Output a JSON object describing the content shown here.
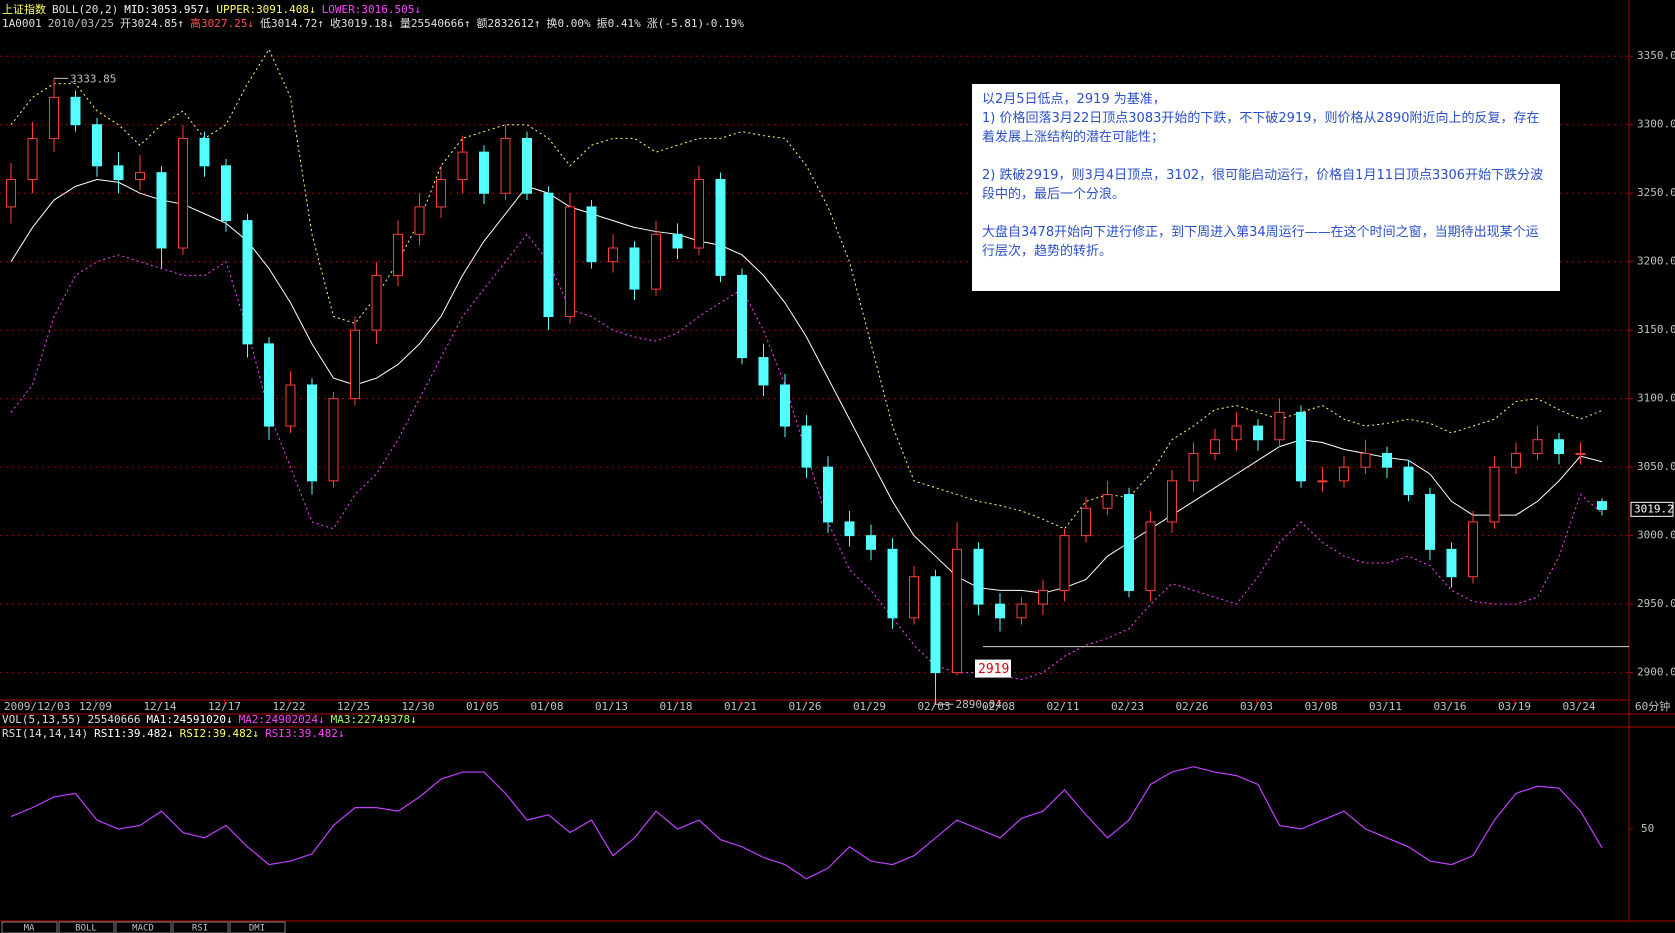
{
  "chart_data": [
    {
      "type": "candlestick",
      "header": [
        {
          "text": "上证指数",
          "color": "#ffff66"
        },
        {
          "text": "BOLL(20,2)",
          "color": "#e0e0e0"
        },
        {
          "text": "MID:3053.957↓",
          "color": "#ffffff"
        },
        {
          "text": "UPPER:3091.408↓",
          "color": "#ffff66"
        },
        {
          "text": "LOWER:3016.505↓",
          "color": "#ff44ff"
        }
      ],
      "info": [
        {
          "text": "1A0001",
          "color": "#e0e0e0"
        },
        {
          "text": "2010/03/25",
          "color": "#c0c0c0"
        },
        {
          "text": "开3024.85↑",
          "color": "#e0e0e0"
        },
        {
          "text": "高3027.25↓",
          "color": "#ff5050"
        },
        {
          "text": "低3014.72↑",
          "color": "#e0e0e0"
        },
        {
          "text": "收3019.18↓",
          "color": "#e0e0e0"
        },
        {
          "text": "量25540666↑",
          "color": "#e0e0e0"
        },
        {
          "text": "额2832612↑",
          "color": "#e0e0e0"
        },
        {
          "text": "换0.00%",
          "color": "#e0e0e0"
        },
        {
          "text": "振0.41%",
          "color": "#e0e0e0"
        },
        {
          "text": "涨(-5.81)-0.19%",
          "color": "#e0e0e0"
        }
      ],
      "categories": [
        "2009/12/03",
        null,
        null,
        "12/09",
        null,
        null,
        "12/14",
        null,
        null,
        "12/17",
        null,
        null,
        "12/22",
        null,
        null,
        "12/25",
        null,
        null,
        "12/30",
        null,
        null,
        "01/05",
        null,
        null,
        "01/08",
        null,
        null,
        "01/13",
        null,
        null,
        "01/18",
        null,
        null,
        "01/21",
        null,
        null,
        "01/26",
        null,
        null,
        "01/29",
        null,
        null,
        "02/03",
        null,
        null,
        "02/08",
        null,
        null,
        "02/11",
        null,
        null,
        "02/23",
        null,
        null,
        "02/26",
        null,
        null,
        "03/03",
        null,
        null,
        "03/08",
        null,
        null,
        "03/11",
        null,
        null,
        "03/16",
        null,
        null,
        "03/19",
        null,
        null,
        "03/24",
        null,
        null
      ],
      "open": [
        3240,
        3260,
        3290,
        3320,
        3300,
        3270,
        3260,
        3265,
        3210,
        3290,
        3270,
        3230,
        3140,
        3080,
        3110,
        3040,
        3100,
        3150,
        3190,
        3220,
        3240,
        3260,
        3280,
        3250,
        3290,
        3250,
        3160,
        3240,
        3200,
        3210,
        3180,
        3220,
        3210,
        3260,
        3190,
        3130,
        3110,
        3080,
        3050,
        3010,
        3000,
        2990,
        2940,
        2970,
        2900,
        2990,
        2950,
        2940,
        2950,
        2960,
        3000,
        3020,
        3030,
        2960,
        3010,
        3040,
        3060,
        3070,
        3080,
        3070,
        3090,
        3040,
        3040,
        3050,
        3060,
        3050,
        3030,
        2990,
        2970,
        3010,
        3050,
        3060,
        3070,
        3060,
        3024.85
      ],
      "high": [
        3272,
        3302,
        3333.85,
        3325,
        3305,
        3280,
        3278,
        3270,
        3300,
        3295,
        3275,
        3235,
        3145,
        3120,
        3115,
        3105,
        3160,
        3200,
        3230,
        3250,
        3270,
        3292,
        3285,
        3300,
        3295,
        3255,
        3250,
        3245,
        3220,
        3215,
        3230,
        3228,
        3270,
        3265,
        3195,
        3140,
        3118,
        3088,
        3058,
        3018,
        3008,
        2998,
        2978,
        2975,
        3010,
        2995,
        2958,
        2955,
        2968,
        3005,
        3028,
        3040,
        3035,
        3018,
        3048,
        3068,
        3078,
        3090,
        3085,
        3100,
        3095,
        3050,
        3058,
        3070,
        3065,
        3055,
        3035,
        2995,
        3018,
        3058,
        3068,
        3080,
        3075,
        3068,
        3027.25
      ],
      "low": [
        3228,
        3250,
        3280,
        3295,
        3262,
        3250,
        3252,
        3195,
        3205,
        3262,
        3222,
        3130,
        3070,
        3075,
        3030,
        3035,
        3095,
        3140,
        3182,
        3212,
        3232,
        3250,
        3242,
        3245,
        3245,
        3150,
        3155,
        3195,
        3192,
        3172,
        3175,
        3202,
        3205,
        3185,
        3125,
        3102,
        3072,
        3042,
        3002,
        2992,
        2982,
        2932,
        2935,
        2890.04,
        2898,
        2942,
        2930,
        2935,
        2942,
        2952,
        2995,
        3015,
        2955,
        2952,
        3002,
        3032,
        3055,
        3062,
        3062,
        3065,
        3035,
        3032,
        3035,
        3045,
        3042,
        3025,
        2982,
        2962,
        2965,
        3005,
        3045,
        3055,
        3052,
        3052,
        3014.72
      ],
      "close": [
        3260,
        3290,
        3320,
        3300,
        3270,
        3260,
        3265,
        3210,
        3290,
        3270,
        3230,
        3140,
        3080,
        3110,
        3040,
        3100,
        3150,
        3190,
        3220,
        3240,
        3260,
        3280,
        3250,
        3290,
        3250,
        3160,
        3240,
        3200,
        3210,
        3180,
        3220,
        3210,
        3260,
        3190,
        3130,
        3110,
        3080,
        3050,
        3010,
        3000,
        2990,
        2940,
        2970,
        2900,
        2990,
        2950,
        2940,
        2950,
        2960,
        3000,
        3020,
        3030,
        2960,
        3010,
        3040,
        3060,
        3070,
        3080,
        3070,
        3090,
        3040,
        3040,
        3050,
        3060,
        3050,
        3030,
        2990,
        2970,
        3010,
        3050,
        3060,
        3070,
        3060,
        3060,
        3019.18
      ],
      "up_color": "#ff3c3c",
      "down_color": "#54ffff",
      "series": [
        {
          "color": "#ffffff",
          "style": "solid",
          "values": [
            3200,
            3225,
            3245,
            3255,
            3260,
            3258,
            3250,
            3245,
            3242,
            3235,
            3228,
            3215,
            3195,
            3170,
            3140,
            3115,
            3110,
            3115,
            3125,
            3140,
            3160,
            3190,
            3215,
            3235,
            3255,
            3250,
            3240,
            3235,
            3230,
            3225,
            3222,
            3220,
            3215,
            3212,
            3205,
            3190,
            3170,
            3145,
            3115,
            3085,
            3055,
            3025,
            3000,
            2985,
            2970,
            2962,
            2960,
            2960,
            2958,
            2962,
            2968,
            2985,
            2995,
            3005,
            3015,
            3025,
            3035,
            3045,
            3055,
            3065,
            3070,
            3068,
            3063,
            3060,
            3057,
            3055,
            3045,
            3025,
            3015,
            3015,
            3015,
            3025,
            3040,
            3058,
            3053.957
          ]
        },
        {
          "color": "#ffff80",
          "style": "dotted",
          "values": [
            3300,
            3320,
            3330,
            3330,
            3310,
            3300,
            3285,
            3300,
            3310,
            3290,
            3300,
            3330,
            3355,
            3320,
            3220,
            3160,
            3155,
            3175,
            3200,
            3230,
            3270,
            3290,
            3295,
            3300,
            3300,
            3290,
            3270,
            3285,
            3290,
            3290,
            3280,
            3285,
            3290,
            3290,
            3295,
            3292,
            3290,
            3270,
            3240,
            3200,
            3140,
            3080,
            3040,
            3035,
            3030,
            3025,
            3022,
            3018,
            3012,
            3005,
            3025,
            3030,
            3028,
            3045,
            3070,
            3080,
            3092,
            3095,
            3090,
            3085,
            3090,
            3095,
            3085,
            3080,
            3082,
            3085,
            3082,
            3075,
            3080,
            3085,
            3098,
            3100,
            3092,
            3085,
            3091.408
          ]
        },
        {
          "color": "#ff44ff",
          "style": "dotted",
          "values": [
            3090,
            3110,
            3160,
            3190,
            3200,
            3205,
            3200,
            3195,
            3190,
            3190,
            3200,
            3150,
            3090,
            3050,
            3010,
            3005,
            3030,
            3045,
            3070,
            3100,
            3130,
            3160,
            3180,
            3200,
            3220,
            3200,
            3165,
            3160,
            3150,
            3145,
            3142,
            3148,
            3160,
            3170,
            3180,
            3150,
            3110,
            3060,
            3010,
            2975,
            2960,
            2940,
            2920,
            2905,
            2900,
            2900,
            2898,
            2895,
            2900,
            2912,
            2920,
            2925,
            2932,
            2950,
            2965,
            2960,
            2955,
            2950,
            2970,
            2995,
            3010,
            2995,
            2985,
            2980,
            2980,
            2985,
            2978,
            2960,
            2952,
            2950,
            2950,
            2955,
            2985,
            3030,
            3016.505
          ]
        }
      ],
      "ylim": [
        2880,
        3375
      ],
      "yticks": [
        {
          "value": 2900,
          "label": "2900.0"
        },
        {
          "value": 2950,
          "label": "2950.0"
        },
        {
          "value": 3000,
          "label": "3000.0"
        },
        {
          "value": 3050,
          "label": "3050.0"
        },
        {
          "value": 3100,
          "label": "3100.0"
        },
        {
          "value": 3150,
          "label": "3150.0"
        },
        {
          "value": 3200,
          "label": "3200.0"
        },
        {
          "value": 3250,
          "label": "3250.0"
        },
        {
          "value": 3300,
          "label": "3300.0"
        },
        {
          "value": 3350,
          "label": "3350.0"
        }
      ],
      "grid": true,
      "support_line": 2919,
      "last_price": 3019.2,
      "period": "60分钟",
      "volume_header": [
        {
          "text": "VOL(5,13,55)",
          "color": "#e0e0e0"
        },
        {
          "text": "25540666",
          "color": "#e0e0e0"
        },
        {
          "text": "MA1:24591020↓",
          "color": "#ffffff"
        },
        {
          "text": "MA2:24902024↓",
          "color": "#ff44ff"
        },
        {
          "text": "MA3:22749378↓",
          "color": "#a0ff60"
        }
      ]
    },
    {
      "type": "line",
      "header": [
        {
          "text": "RSI(14,14,14)",
          "color": "#e0e0e0"
        },
        {
          "text": "RSI1:39.482↓",
          "color": "#ffffff"
        },
        {
          "text": "RSI2:39.482↓",
          "color": "#ffff66"
        },
        {
          "text": "RSI3:39.482↓",
          "color": "#ff44ff"
        }
      ],
      "values": [
        57,
        62,
        68,
        70,
        55,
        50,
        52,
        60,
        48,
        45,
        52,
        40,
        30,
        32,
        36,
        52,
        62,
        62,
        60,
        68,
        78,
        82,
        82,
        70,
        55,
        58,
        48,
        55,
        35,
        45,
        60,
        50,
        55,
        44,
        40,
        34,
        30,
        22,
        28,
        40,
        32,
        30,
        35,
        45,
        55,
        50,
        45,
        56,
        60,
        72,
        58,
        45,
        55,
        75,
        82,
        85,
        82,
        80,
        75,
        52,
        50,
        55,
        60,
        50,
        45,
        40,
        32,
        30,
        35,
        55,
        70,
        74,
        73,
        60,
        39.482
      ],
      "color": "#c040ff",
      "ylim": [
        0,
        100
      ],
      "yticks": [
        50
      ]
    }
  ],
  "note": [
    "以2月5日低点，2919 为基准，\n1) 价格回落3月22日顶点3083开始的下跌，不下破2919，则价格从2890附近向上的反复，存在着发展上涨结构的潜在可能性；",
    "2) 跌破2919，则3月4日顶点，3102，很可能启动运行，价格自1月11日顶点3306开始下跌分波段中的，最后一个分浪。",
    "大盘自3478开始向下进行修正，到下周进入第34周运行——在这个时间之窗，当期待出现某个运行层次，趋势的转折。"
  ],
  "tabs": [
    "MA",
    "BOLL",
    "MACD",
    "RSI",
    "DMI"
  ]
}
